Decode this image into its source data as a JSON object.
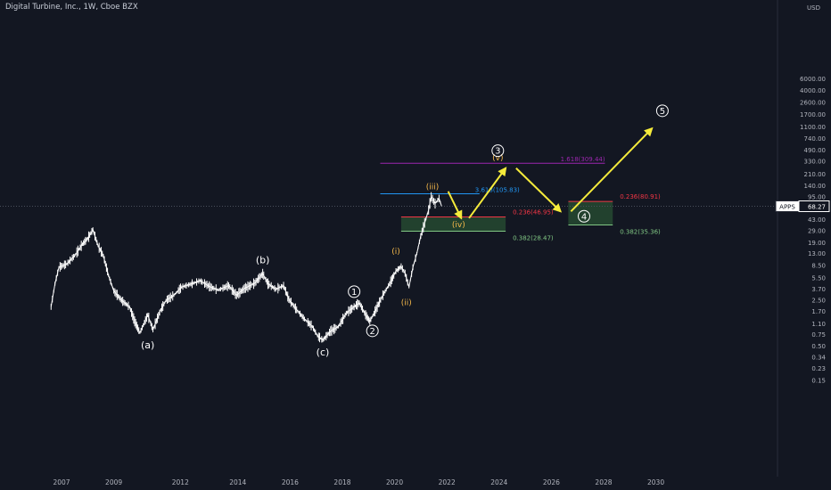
{
  "header": {
    "symbol_title": "Digital Turbine, Inc., 1W, Cboe BZX",
    "currency": "USD"
  },
  "price_tag": {
    "symbol": "APPS",
    "value": "68.27"
  },
  "colors": {
    "background": "#131722",
    "candles": "#ffffff",
    "arrows": "#f5eb3b",
    "fib_purple": "#9c27b0",
    "fib_blue": "#2196f3",
    "fib_red": "#f23645",
    "fib_green": "#81c784",
    "grid": "#2a2e39"
  },
  "chart_data": {
    "type": "line",
    "scale": "log",
    "x_ticks": [
      "2007",
      "2009",
      "2012",
      "2014",
      "2016",
      "2018",
      "2020",
      "2022",
      "2024",
      "2026",
      "2028",
      "2030"
    ],
    "y_ticks": [
      "6000.00",
      "4000.00",
      "2600.00",
      "1700.00",
      "1100.00",
      "740.00",
      "490.00",
      "330.00",
      "210.00",
      "140.00",
      "95.00",
      "43.00",
      "29.00",
      "19.00",
      "13.00",
      "8.50",
      "5.50",
      "3.70",
      "2.50",
      "1.70",
      "1.10",
      "0.75",
      "0.50",
      "0.34",
      "0.23",
      "0.15"
    ],
    "price_series": [
      {
        "x": 2006.6,
        "y": 2.0
      },
      {
        "x": 2006.75,
        "y": 4.5
      },
      {
        "x": 2006.9,
        "y": 8.0
      },
      {
        "x": 2007.2,
        "y": 9.0
      },
      {
        "x": 2007.5,
        "y": 12.0
      },
      {
        "x": 2007.8,
        "y": 18.0
      },
      {
        "x": 2008.0,
        "y": 22.0
      },
      {
        "x": 2008.2,
        "y": 30.0
      },
      {
        "x": 2008.4,
        "y": 17.0
      },
      {
        "x": 2008.6,
        "y": 12.0
      },
      {
        "x": 2008.8,
        "y": 6.0
      },
      {
        "x": 2009.0,
        "y": 3.5
      },
      {
        "x": 2009.3,
        "y": 2.5
      },
      {
        "x": 2009.6,
        "y": 2.0
      },
      {
        "x": 2009.8,
        "y": 1.2
      },
      {
        "x": 2010.0,
        "y": 0.8
      },
      {
        "x": 2010.3,
        "y": 1.5
      },
      {
        "x": 2010.5,
        "y": 0.9
      },
      {
        "x": 2010.8,
        "y": 1.8
      },
      {
        "x": 2011.0,
        "y": 2.5
      },
      {
        "x": 2011.3,
        "y": 3.0
      },
      {
        "x": 2011.6,
        "y": 4.0
      },
      {
        "x": 2012.0,
        "y": 4.5
      },
      {
        "x": 2012.3,
        "y": 5.0
      },
      {
        "x": 2012.7,
        "y": 4.0
      },
      {
        "x": 2013.0,
        "y": 3.6
      },
      {
        "x": 2013.4,
        "y": 4.2
      },
      {
        "x": 2013.7,
        "y": 3.0
      },
      {
        "x": 2014.0,
        "y": 3.8
      },
      {
        "x": 2014.4,
        "y": 4.6
      },
      {
        "x": 2014.7,
        "y": 6.4
      },
      {
        "x": 2014.9,
        "y": 4.5
      },
      {
        "x": 2015.2,
        "y": 3.7
      },
      {
        "x": 2015.5,
        "y": 4.2
      },
      {
        "x": 2015.7,
        "y": 2.6
      },
      {
        "x": 2016.0,
        "y": 1.8
      },
      {
        "x": 2016.3,
        "y": 1.3
      },
      {
        "x": 2016.6,
        "y": 1.0
      },
      {
        "x": 2016.8,
        "y": 0.72
      },
      {
        "x": 2017.0,
        "y": 0.62
      },
      {
        "x": 2017.3,
        "y": 0.85
      },
      {
        "x": 2017.6,
        "y": 1.0
      },
      {
        "x": 2017.9,
        "y": 1.6
      },
      {
        "x": 2018.2,
        "y": 2.0
      },
      {
        "x": 2018.4,
        "y": 2.3
      },
      {
        "x": 2018.6,
        "y": 1.6
      },
      {
        "x": 2018.8,
        "y": 1.2
      },
      {
        "x": 2019.0,
        "y": 1.7
      },
      {
        "x": 2019.3,
        "y": 3.0
      },
      {
        "x": 2019.6,
        "y": 4.8
      },
      {
        "x": 2019.8,
        "y": 7.0
      },
      {
        "x": 2020.0,
        "y": 8.2
      },
      {
        "x": 2020.15,
        "y": 6.5
      },
      {
        "x": 2020.3,
        "y": 4.0
      },
      {
        "x": 2020.45,
        "y": 8.0
      },
      {
        "x": 2020.6,
        "y": 13.0
      },
      {
        "x": 2020.75,
        "y": 24.0
      },
      {
        "x": 2020.9,
        "y": 38.0
      },
      {
        "x": 2021.05,
        "y": 60.0
      },
      {
        "x": 2021.15,
        "y": 95.0
      },
      {
        "x": 2021.3,
        "y": 75.0
      },
      {
        "x": 2021.45,
        "y": 90.0
      },
      {
        "x": 2021.55,
        "y": 68.27
      }
    ],
    "fib_lines": [
      {
        "label": "3.618(105.83)",
        "value": 105.83,
        "x_from": 2019.2,
        "x_to": 2023.0
      },
      {
        "label": "1.618(309.44)",
        "value": 309.44,
        "x_from": 2019.2,
        "x_to": 2027.8
      },
      {
        "label": "0.236(46.95)",
        "value": 46.95,
        "x_from": 2020.0,
        "x_to": 2024.0
      },
      {
        "label": "0.382(28.47)",
        "value": 28.47,
        "x_from": 2020.0,
        "x_to": 2024.0
      },
      {
        "label": "0.236(80.91)",
        "value": 80.91,
        "x_from": 2026.4,
        "x_to": 2028.1
      },
      {
        "label": "0.382(35.36)",
        "value": 35.36,
        "x_from": 2026.4,
        "x_to": 2028.1
      }
    ],
    "wave_labels": [
      {
        "text": "(a)",
        "x": 2010.3,
        "y": 0.53
      },
      {
        "text": "(b)",
        "x": 2014.7,
        "y": 10.5
      },
      {
        "text": "(c)",
        "x": 2017.0,
        "y": 0.41
      },
      {
        "text": "1",
        "x": 2018.2,
        "y": 3.4
      },
      {
        "text": "2",
        "x": 2018.9,
        "y": 0.86
      },
      {
        "text": "(i)",
        "x": 2019.8,
        "y": 14.5
      },
      {
        "text": "(ii)",
        "x": 2020.2,
        "y": 2.4
      },
      {
        "text": "(iii)",
        "x": 2021.2,
        "y": 140.0
      },
      {
        "text": "(iv)",
        "x": 2022.2,
        "y": 37.0
      },
      {
        "text": "(v)",
        "x": 2023.7,
        "y": 390.0
      },
      {
        "text": "3",
        "x": 2023.7,
        "y": 480.0
      },
      {
        "text": "4",
        "x": 2027.0,
        "y": 48.0
      },
      {
        "text": "5",
        "x": 2030.0,
        "y": 1950.0
      }
    ],
    "projection_arrows": [
      {
        "from": {
          "x": 2021.8,
          "y": 115.0
        },
        "to": {
          "x": 2022.3,
          "y": 45.0
        }
      },
      {
        "from": {
          "x": 2022.6,
          "y": 45.0
        },
        "to": {
          "x": 2024.0,
          "y": 260.0
        }
      },
      {
        "from": {
          "x": 2024.4,
          "y": 260.0
        },
        "to": {
          "x": 2026.1,
          "y": 57.0
        }
      },
      {
        "from": {
          "x": 2026.5,
          "y": 57.0
        },
        "to": {
          "x": 2029.6,
          "y": 1050.0
        }
      }
    ]
  }
}
